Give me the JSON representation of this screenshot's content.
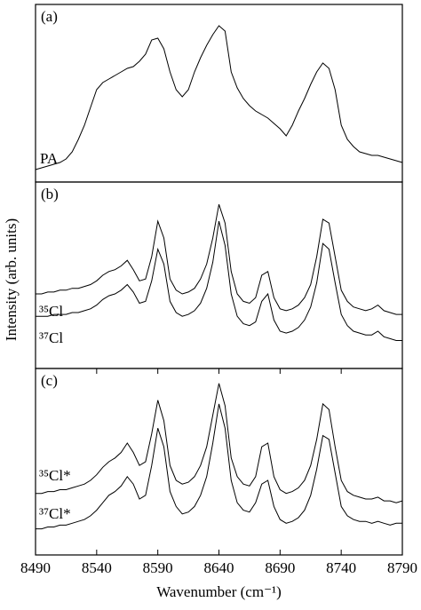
{
  "chart_data": [
    {
      "type": "line",
      "panel_label": "(a)",
      "ylabel": "Intensity (arb. units)",
      "xlim": [
        8490,
        8790
      ],
      "ylim": [
        0,
        100
      ],
      "x": [
        8490,
        8495,
        8500,
        8505,
        8510,
        8515,
        8520,
        8525,
        8530,
        8535,
        8540,
        8545,
        8550,
        8555,
        8560,
        8565,
        8570,
        8575,
        8580,
        8585,
        8590,
        8595,
        8600,
        8605,
        8610,
        8615,
        8620,
        8625,
        8630,
        8635,
        8640,
        8645,
        8650,
        8655,
        8660,
        8665,
        8670,
        8675,
        8680,
        8685,
        8690,
        8695,
        8700,
        8705,
        8710,
        8715,
        8720,
        8725,
        8730,
        8735,
        8740,
        8745,
        8750,
        8755,
        8760,
        8765,
        8770,
        8775,
        8780,
        8785,
        8790
      ],
      "series": [
        {
          "name": "PA",
          "color": "#000000",
          "values": [
            7,
            8,
            9,
            10,
            11,
            13,
            17,
            24,
            32,
            42,
            52,
            56,
            58,
            60,
            62,
            64,
            65,
            68,
            72,
            80,
            81,
            75,
            62,
            52,
            48,
            52,
            62,
            70,
            77,
            83,
            88,
            85,
            62,
            53,
            47,
            43,
            40,
            38,
            36,
            33,
            30,
            26,
            32,
            40,
            47,
            55,
            62,
            67,
            64,
            52,
            32,
            24,
            20,
            17,
            16,
            15,
            15,
            14,
            13,
            12,
            11
          ]
        }
      ]
    },
    {
      "type": "line",
      "panel_label": "(b)",
      "xlim": [
        8490,
        8790
      ],
      "ylim": [
        0,
        100
      ],
      "x": [
        8490,
        8495,
        8500,
        8505,
        8510,
        8515,
        8520,
        8525,
        8530,
        8535,
        8540,
        8545,
        8550,
        8555,
        8560,
        8565,
        8570,
        8575,
        8580,
        8585,
        8590,
        8595,
        8600,
        8605,
        8610,
        8615,
        8620,
        8625,
        8630,
        8635,
        8640,
        8645,
        8650,
        8655,
        8660,
        8665,
        8670,
        8675,
        8680,
        8685,
        8690,
        8695,
        8700,
        8705,
        8710,
        8715,
        8720,
        8725,
        8730,
        8735,
        8740,
        8745,
        8750,
        8755,
        8760,
        8765,
        8770,
        8775,
        8780,
        8785,
        8790
      ],
      "series": [
        {
          "name": "³⁵Cl",
          "color": "#000000",
          "values": [
            40,
            40,
            41,
            41,
            42,
            42,
            43,
            43,
            44,
            45,
            47,
            50,
            52,
            53,
            55,
            58,
            53,
            47,
            48,
            60,
            79,
            70,
            48,
            42,
            40,
            41,
            43,
            48,
            56,
            70,
            88,
            78,
            52,
            40,
            36,
            35,
            38,
            50,
            52,
            38,
            32,
            31,
            32,
            34,
            38,
            45,
            60,
            80,
            78,
            60,
            42,
            36,
            33,
            32,
            31,
            32,
            34,
            31,
            30,
            29,
            29
          ]
        },
        {
          "name": "³⁷Cl",
          "color": "#000000",
          "values": [
            28,
            28,
            28,
            29,
            29,
            29,
            30,
            30,
            31,
            32,
            34,
            37,
            39,
            40,
            42,
            45,
            41,
            35,
            36,
            47,
            64,
            56,
            36,
            30,
            28,
            29,
            31,
            35,
            43,
            57,
            79,
            66,
            40,
            28,
            24,
            23,
            25,
            36,
            40,
            26,
            20,
            19,
            20,
            22,
            26,
            33,
            46,
            67,
            64,
            46,
            29,
            23,
            20,
            19,
            18,
            18,
            20,
            17,
            16,
            15,
            15
          ]
        }
      ]
    },
    {
      "type": "line",
      "panel_label": "(c)",
      "xlabel": "Wavenumber (cm⁻¹)",
      "xlim": [
        8490,
        8790
      ],
      "ylim": [
        0,
        100
      ],
      "xticks": [
        8490,
        8540,
        8590,
        8640,
        8690,
        8740,
        8790
      ],
      "x": [
        8490,
        8495,
        8500,
        8505,
        8510,
        8515,
        8520,
        8525,
        8530,
        8535,
        8540,
        8545,
        8550,
        8555,
        8560,
        8565,
        8570,
        8575,
        8580,
        8585,
        8590,
        8595,
        8600,
        8605,
        8610,
        8615,
        8620,
        8625,
        8630,
        8635,
        8640,
        8645,
        8650,
        8655,
        8660,
        8665,
        8670,
        8675,
        8680,
        8685,
        8690,
        8695,
        8700,
        8705,
        8710,
        8715,
        8720,
        8725,
        8730,
        8735,
        8740,
        8745,
        8750,
        8755,
        8760,
        8765,
        8770,
        8775,
        8780,
        8785,
        8790
      ],
      "series": [
        {
          "name": "³⁵Cl*",
          "color": "#000000",
          "values": [
            33,
            33,
            34,
            34,
            35,
            35,
            36,
            37,
            38,
            40,
            43,
            47,
            50,
            52,
            55,
            60,
            55,
            48,
            50,
            65,
            83,
            72,
            48,
            40,
            38,
            39,
            42,
            48,
            58,
            75,
            92,
            80,
            52,
            42,
            38,
            37,
            42,
            58,
            60,
            42,
            35,
            33,
            34,
            36,
            40,
            48,
            62,
            81,
            78,
            58,
            40,
            34,
            32,
            31,
            30,
            30,
            31,
            29,
            29,
            28,
            29
          ]
        },
        {
          "name": "³⁷Cl*",
          "color": "#000000",
          "values": [
            14,
            14,
            15,
            15,
            16,
            16,
            17,
            18,
            19,
            21,
            24,
            28,
            32,
            34,
            37,
            42,
            38,
            30,
            32,
            48,
            68,
            58,
            34,
            26,
            22,
            23,
            26,
            32,
            42,
            60,
            81,
            68,
            40,
            28,
            24,
            23,
            28,
            38,
            40,
            26,
            19,
            17,
            18,
            20,
            24,
            32,
            46,
            64,
            62,
            44,
            26,
            21,
            19,
            18,
            18,
            17,
            18,
            17,
            16,
            17,
            17
          ]
        }
      ]
    }
  ]
}
